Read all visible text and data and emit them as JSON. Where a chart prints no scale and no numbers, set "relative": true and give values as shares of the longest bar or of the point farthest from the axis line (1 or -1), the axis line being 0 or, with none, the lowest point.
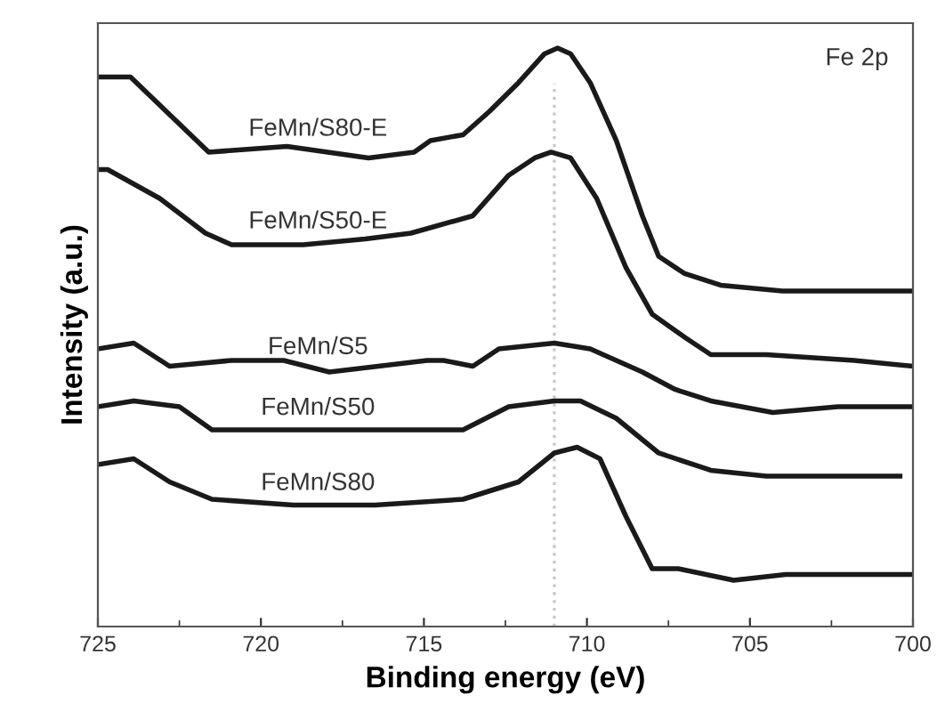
{
  "chart_data": {
    "type": "line",
    "relative": true,
    "xlabel": "Binding energy (eV)",
    "ylabel": "Intensity (a.u.)",
    "xlim": [
      725,
      700
    ],
    "xticks": [
      725,
      720,
      715,
      710,
      705,
      700
    ],
    "tick_labels": "x",
    "grid": false,
    "legend": false,
    "marker": "none",
    "line_style": "solid",
    "annotations": [
      "Fe 2p"
    ],
    "ref_lines": [
      {
        "axis": "x",
        "value": 711,
        "label": null,
        "color": "#c8c8c8",
        "line_style": "dotted"
      }
    ],
    "series": [
      {
        "name": "FeMn/S80-E",
        "color": "#1a1a1a",
        "x": [
          725,
          724,
          721.6,
          719.2,
          716.7,
          715.3,
          714.8,
          713.8,
          713,
          712.1,
          711.3,
          710.9,
          710.5,
          709.9,
          709.1,
          708.3,
          707.8,
          707,
          705.9,
          704,
          701.8,
          700
        ],
        "values": [
          0.95,
          0.95,
          0.82,
          0.83,
          0.81,
          0.82,
          0.84,
          0.85,
          0.89,
          0.94,
          0.99,
          1,
          0.99,
          0.94,
          0.84,
          0.71,
          0.64,
          0.61,
          0.59,
          0.58,
          0.58,
          0.58
        ]
      },
      {
        "name": "FeMn/S50-E",
        "color": "#1a1a1a",
        "x": [
          725,
          724.7,
          723.1,
          721.7,
          720.9,
          718.7,
          716.8,
          715.4,
          713.5,
          712.4,
          711.6,
          711.1,
          710.5,
          709.7,
          708.8,
          708,
          707,
          706.2,
          704.5,
          701.8,
          700
        ],
        "values": [
          0.79,
          0.79,
          0.74,
          0.68,
          0.66,
          0.66,
          0.67,
          0.68,
          0.71,
          0.78,
          0.81,
          0.82,
          0.81,
          0.74,
          0.62,
          0.54,
          0.5,
          0.47,
          0.47,
          0.46,
          0.45
        ]
      },
      {
        "name": "FeMn/S5",
        "color": "#1a1a1a",
        "x": [
          725,
          723.9,
          722.8,
          720.9,
          719.3,
          717.9,
          714.9,
          714.4,
          713.5,
          712.7,
          711,
          709.9,
          708.3,
          707.3,
          706.2,
          704.3,
          702.3,
          700
        ],
        "values": [
          0.48,
          0.49,
          0.45,
          0.46,
          0.46,
          0.44,
          0.46,
          0.46,
          0.45,
          0.48,
          0.49,
          0.48,
          0.44,
          0.41,
          0.39,
          0.37,
          0.38,
          0.38
        ]
      },
      {
        "name": "FeMn/S50",
        "color": "#1a1a1a",
        "x": [
          725,
          723.9,
          722.5,
          721.5,
          719.8,
          718.2,
          716,
          713.8,
          712.4,
          711,
          710.2,
          709.1,
          707.8,
          706.2,
          704.5,
          702.3,
          700.4
        ],
        "values": [
          0.38,
          0.39,
          0.38,
          0.34,
          0.34,
          0.34,
          0.34,
          0.34,
          0.38,
          0.39,
          0.39,
          0.36,
          0.3,
          0.27,
          0.26,
          0.26,
          0.26
        ]
      },
      {
        "name": "FeMn/S80",
        "color": "#1a1a1a",
        "x": [
          725,
          723.9,
          722.8,
          721.5,
          719,
          716.5,
          713.8,
          712.1,
          711,
          710.3,
          709.6,
          708.8,
          708,
          707.2,
          705.5,
          703.9,
          702.3,
          700
        ],
        "values": [
          0.28,
          0.29,
          0.25,
          0.22,
          0.21,
          0.21,
          0.22,
          0.25,
          0.3,
          0.31,
          0.29,
          0.19,
          0.1,
          0.1,
          0.08,
          0.09,
          0.09,
          0.09
        ]
      }
    ]
  }
}
